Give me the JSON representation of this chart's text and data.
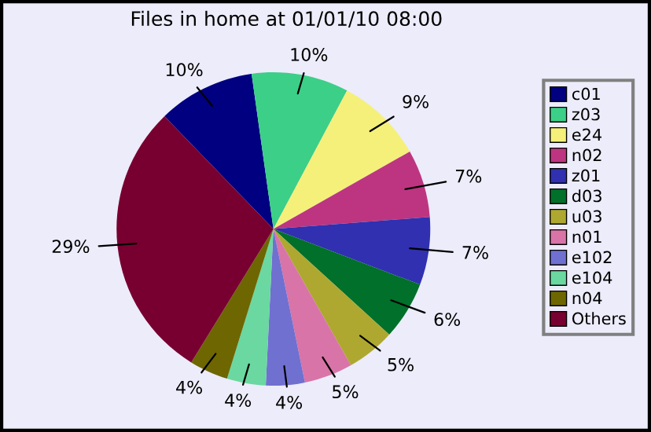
{
  "chart_data": {
    "type": "pie",
    "title": "Files in home at 01/01/10 08:00",
    "categories": [
      "c01",
      "z03",
      "e24",
      "n02",
      "z01",
      "d03",
      "u03",
      "n01",
      "e102",
      "e104",
      "n04",
      "Others"
    ],
    "values": [
      10,
      10,
      9,
      7,
      7,
      6,
      5,
      5,
      4,
      4,
      4,
      29
    ],
    "value_labels": [
      "10%",
      "10%",
      "9%",
      "7%",
      "7%",
      "6%",
      "5%",
      "5%",
      "4%",
      "4%",
      "4%",
      "29%"
    ],
    "colors": [
      "#000080",
      "#3ccf88",
      "#f5f07a",
      "#bd3580",
      "#3030b0",
      "#00702a",
      "#aea830",
      "#d874a8",
      "#7070d0",
      "#6ad8a0",
      "#6e6600",
      "#780030"
    ],
    "legend": "right"
  }
}
